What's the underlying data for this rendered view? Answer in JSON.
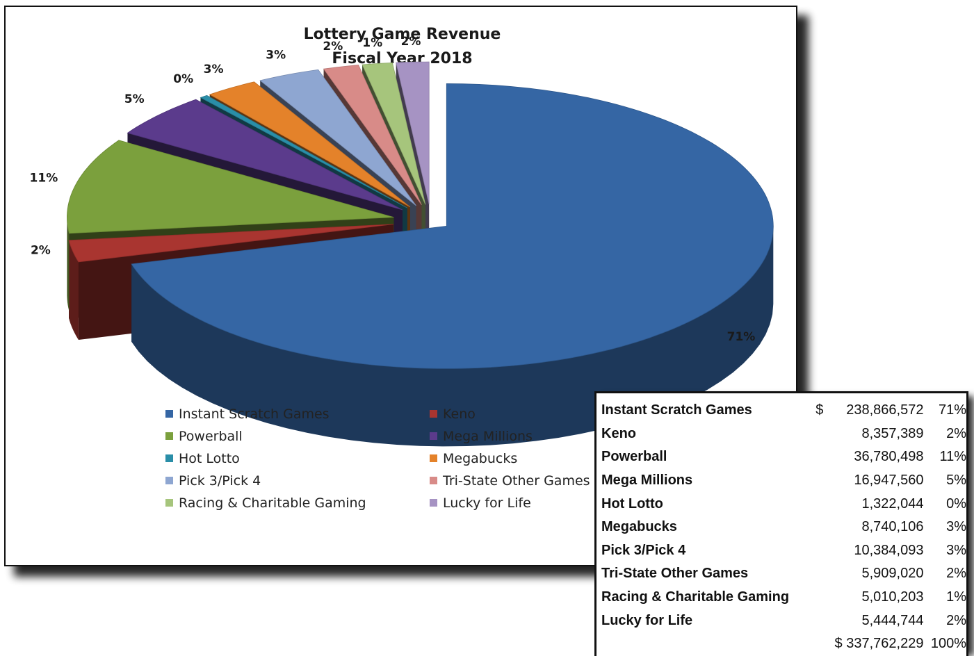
{
  "chart_data": {
    "type": "pie",
    "title": [
      "Lottery Game Revenue",
      "Fiscal Year 2018"
    ],
    "currency_symbol": "$",
    "legend_position": "bottom",
    "exploded_3d": true,
    "categories": [
      "Instant Scratch Games",
      "Keno",
      "Powerball",
      "Mega Millions",
      "Hot Lotto",
      "Megabucks",
      "Pick 3/Pick 4",
      "Tri-State Other Games",
      "Racing & Charitable Gaming",
      "Lucky for Life"
    ],
    "values": [
      238866572,
      8357389,
      36780498,
      16947560,
      1322044,
      8740106,
      10384093,
      5909020,
      5010203,
      5444744
    ],
    "amount_labels": [
      "238,866,572",
      "8,357,389",
      "36,780,498",
      "16,947,560",
      "1,322,044",
      "8,740,106",
      "10,384,093",
      "5,909,020",
      "5,010,203",
      "5,444,744"
    ],
    "percent_labels": [
      "71%",
      "2%",
      "11%",
      "5%",
      "0%",
      "3%",
      "3%",
      "2%",
      "1%",
      "2%"
    ],
    "colors": [
      "#3566a4",
      "#a93530",
      "#7ba03d",
      "#5b3b8c",
      "#2a8ea8",
      "#e4822a",
      "#8ea6d1",
      "#d88b88",
      "#a6c57c",
      "#a693c3"
    ],
    "total_label": "$ 337,762,229",
    "total_percent": "100%"
  }
}
